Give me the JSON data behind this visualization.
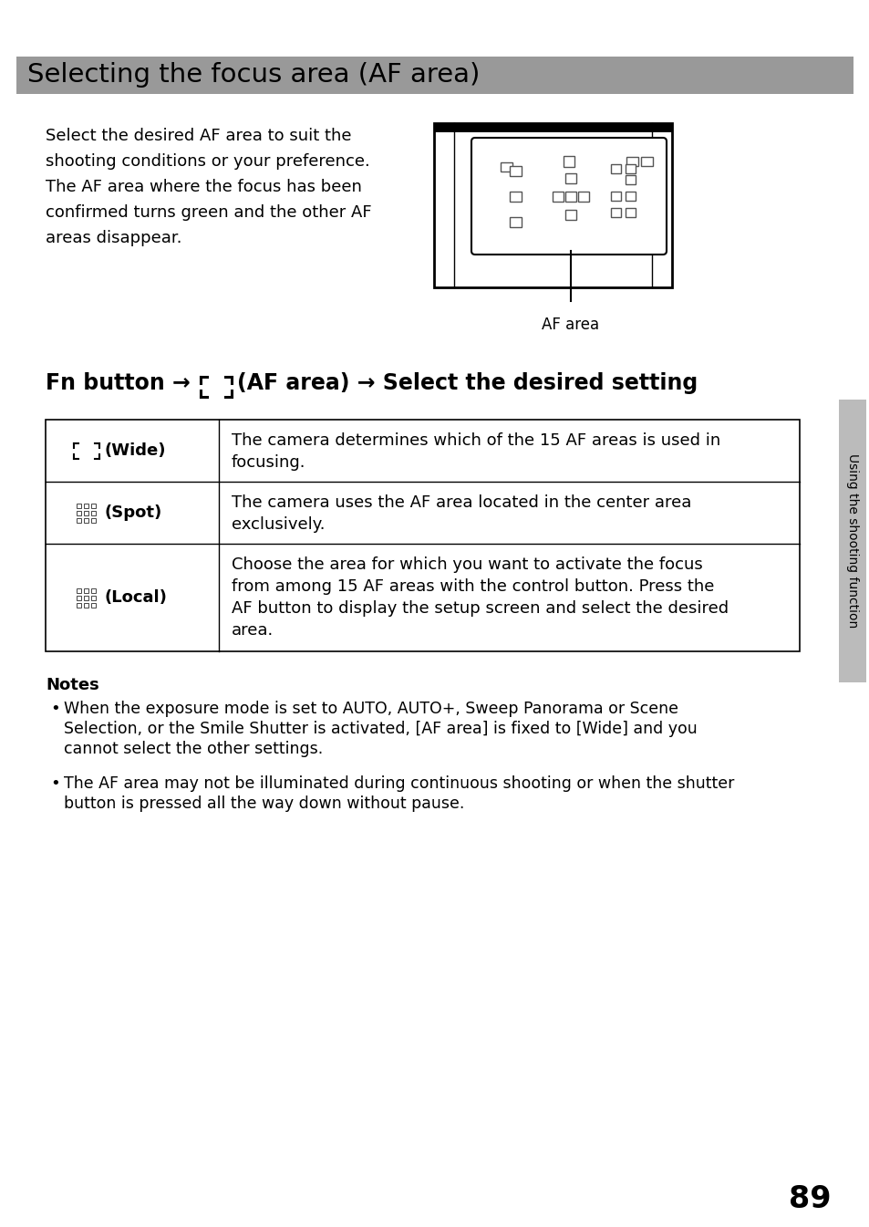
{
  "title": "Selecting the focus area (AF area)",
  "title_bg": "#999999",
  "page_number": "89",
  "intro_text_lines": [
    "Select the desired AF area to suit the",
    "shooting conditions or your preference.",
    "The AF area where the focus has been",
    "confirmed turns green and the other AF",
    "areas disappear."
  ],
  "af_area_label": "AF area",
  "table_rows": [
    {
      "icon": "wide",
      "label": "(Wide)",
      "desc_lines": [
        "The camera determines which of the 15 AF areas is used in",
        "focusing."
      ]
    },
    {
      "icon": "spot",
      "label": "(Spot)",
      "desc_lines": [
        "The camera uses the AF area located in the center area",
        "exclusively."
      ]
    },
    {
      "icon": "local",
      "label": "(Local)",
      "desc_lines": [
        "Choose the area for which you want to activate the focus",
        "from among 15 AF areas with the control button. Press the",
        "AF button to display the setup screen and select the desired",
        "area."
      ]
    }
  ],
  "notes_title": "Notes",
  "notes": [
    [
      "When the exposure mode is set to AUTO, AUTO+, Sweep Panorama or Scene",
      "Selection, or the Smile Shutter is activated, [AF area] is fixed to [Wide] and you",
      "cannot select the other settings."
    ],
    [
      "The AF area may not be illuminated during continuous shooting or when the shutter",
      "button is pressed all the way down without pause."
    ]
  ],
  "sidebar_text": "Using the shooting function"
}
